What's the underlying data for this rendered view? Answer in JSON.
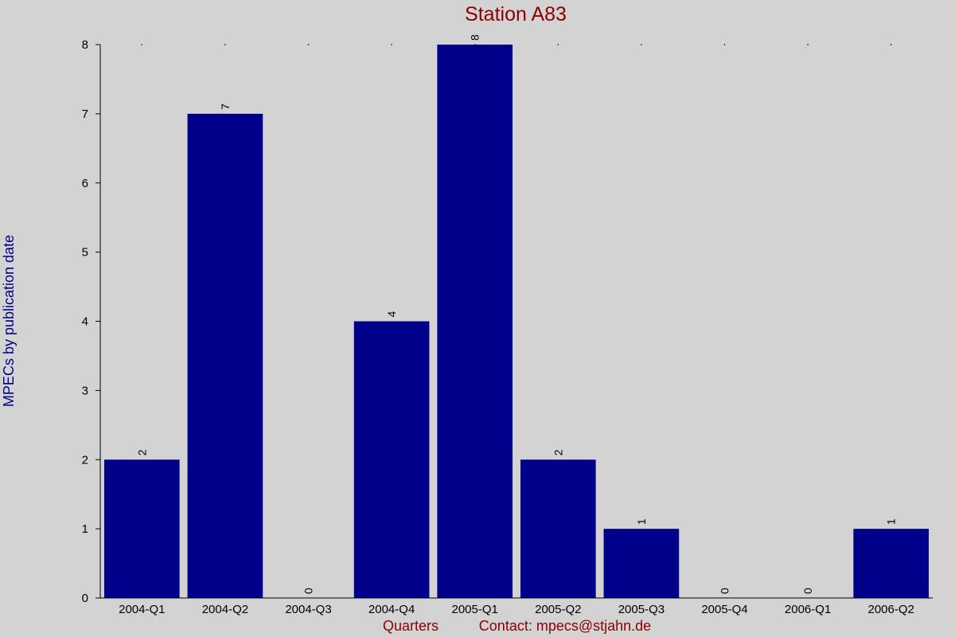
{
  "chart_data": {
    "type": "bar",
    "title": "Station A83",
    "xlabel": "Quarters",
    "ylabel": "MPECs by publication date",
    "contact": "Contact: mpecs@stjahn.de",
    "categories": [
      "2004-Q1",
      "2004-Q2",
      "2004-Q3",
      "2004-Q4",
      "2005-Q1",
      "2005-Q2",
      "2005-Q3",
      "2005-Q4",
      "2006-Q1",
      "2006-Q2"
    ],
    "values": [
      2,
      7,
      0,
      4,
      8,
      2,
      1,
      0,
      0,
      1
    ],
    "ylim": [
      0,
      8
    ],
    "yticks": [
      0,
      1,
      2,
      3,
      4,
      5,
      6,
      7,
      8
    ],
    "bar_color": "#00008b",
    "background": "#d3d3d3",
    "title_color": "#8b0000",
    "grid": false
  }
}
